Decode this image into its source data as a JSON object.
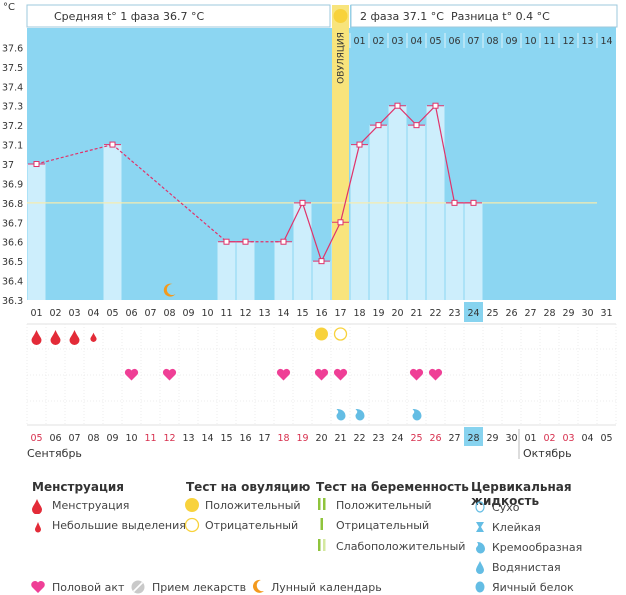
{
  "chart_data": {
    "type": "bar",
    "y_unit": "°C",
    "ylim": [
      36.3,
      37.7
    ],
    "y_ticks": [
      "37.6",
      "37.5",
      "37.4",
      "37.3",
      "37.2",
      "37.1",
      "37",
      "36.9",
      "36.8",
      "36.7",
      "36.6",
      "36.5",
      "36.4",
      "36.3"
    ],
    "coverline": 36.8,
    "header": {
      "phase1": "Средняя t° 1 фаза 36.7 °C",
      "phase2": "2 фаза 37.1 °C",
      "diff": "Разница t° 0.4 °C"
    },
    "ovulation_label": "ОВУЛЯЦИЯ",
    "ovulation_cycle_day": 17,
    "cycle_days": [
      "01",
      "02",
      "03",
      "04",
      "05",
      "06",
      "07",
      "08",
      "09",
      "10",
      "11",
      "12",
      "13",
      "14",
      "15",
      "16",
      "17",
      "18",
      "19",
      "20",
      "21",
      "22",
      "23",
      "24",
      "25",
      "26",
      "27",
      "28",
      "29",
      "30",
      "31"
    ],
    "highlight_cycle_day": "24",
    "phase2_days": [
      "01",
      "02",
      "03",
      "04",
      "05",
      "06",
      "07",
      "08",
      "09",
      "10",
      "11",
      "12",
      "13",
      "14"
    ],
    "temperatures": [
      37.0,
      null,
      null,
      null,
      37.1,
      null,
      null,
      null,
      null,
      null,
      36.6,
      36.6,
      null,
      36.6,
      36.8,
      36.5,
      36.7,
      37.1,
      37.2,
      37.3,
      37.2,
      37.3,
      36.8,
      36.8,
      null,
      null,
      null,
      null,
      null,
      null,
      null
    ],
    "moon_day": 8,
    "menstruation": [
      1,
      2,
      3,
      4
    ],
    "menstruation_small": [
      4
    ],
    "ovulation_test_positive": [
      16
    ],
    "ovulation_test_negative": [
      17
    ],
    "intercourse": [
      6,
      8,
      14,
      16,
      17,
      21,
      22
    ],
    "cervical_creamy": [
      17,
      18,
      21
    ],
    "calendar_dates": [
      "05",
      "06",
      "07",
      "08",
      "09",
      "10",
      "11",
      "12",
      "13",
      "14",
      "15",
      "16",
      "17",
      "18",
      "19",
      "20",
      "21",
      "22",
      "23",
      "24",
      "25",
      "26",
      "27",
      "28",
      "29",
      "30",
      "01",
      "02",
      "03",
      "04",
      "05"
    ],
    "calendar_red": [
      0,
      6,
      7,
      13,
      14,
      20,
      21,
      27,
      28
    ],
    "highlight_date_index": 23,
    "month_left": "Сентябрь",
    "month_right": "Октябрь"
  },
  "legend": {
    "menstruation_title": "Менструация",
    "menstruation": "Менструация",
    "spotting": "Небольшие выделения",
    "ovulation_test_title": "Тест на овуляцию",
    "positive": "Положительный",
    "negative": "Отрицательный",
    "pregnancy_test_title": "Тест на беременность",
    "preg_positive": "Положительный",
    "preg_negative": "Отрицательный",
    "preg_weak": "Слабоположительный",
    "cervical_title": "Цервикальная жидкость",
    "dry": "Сухо",
    "sticky": "Клейкая",
    "creamy": "Кремообразная",
    "watery": "Водянистая",
    "eggwhite": "Яичный белок",
    "intercourse": "Половой акт",
    "medication": "Прием лекарств",
    "lunar": "Лунный календарь"
  },
  "colors": {
    "sky": "#8cd6f2",
    "bar": "#cdeefc",
    "line": "#e0336b",
    "ovulation": "#f8e47c",
    "coverline": "#f5ecb0",
    "heart": "#ef3f96",
    "drop": "#e32b38",
    "creamy": "#64bde4",
    "highlight": "#87d3ef",
    "red_date": "#d7304e"
  }
}
